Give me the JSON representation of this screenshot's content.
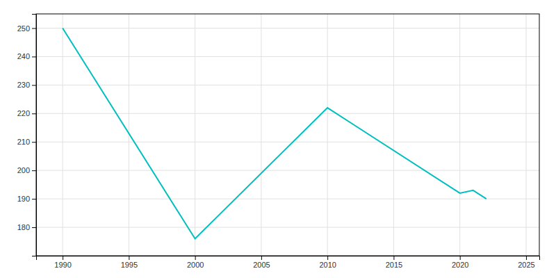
{
  "chart_data": {
    "type": "line",
    "x": [
      1990,
      2000,
      2010,
      2020,
      2021,
      2022
    ],
    "values": [
      250,
      176,
      222,
      192,
      193,
      190
    ],
    "color": "#00BFBF",
    "xlim": [
      1988,
      2026
    ],
    "ylim": [
      170,
      255
    ],
    "xticks": [
      1990,
      1995,
      2000,
      2005,
      2010,
      2015,
      2020,
      2025
    ],
    "yticks": [
      180,
      190,
      200,
      210,
      220,
      230,
      240,
      250
    ],
    "grid": true
  }
}
